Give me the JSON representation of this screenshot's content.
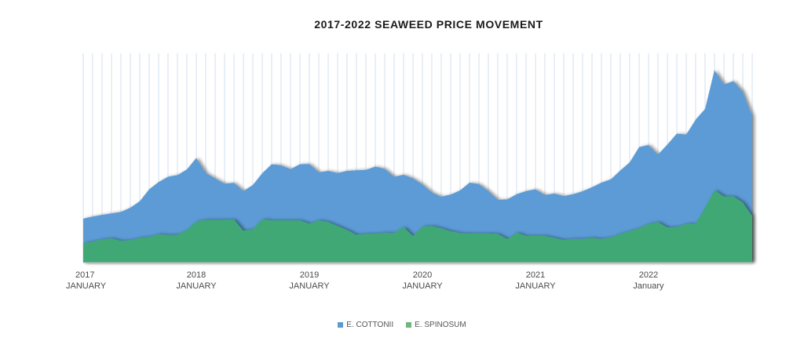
{
  "chart_data": {
    "type": "area",
    "title": "2017-2022 SEAWEED PRICE MOVEMENT",
    "xlabel": "",
    "ylabel": "",
    "grid": "vertical",
    "legend_position": "bottom",
    "x_ticks": [
      {
        "year": "2017",
        "month": "JANUARY"
      },
      {
        "year": "2018",
        "month": "JANUARY"
      },
      {
        "year": "2019",
        "month": "JANUARY"
      },
      {
        "year": "2020",
        "month": "JANUARY"
      },
      {
        "year": "2021",
        "month": "JANUARY"
      },
      {
        "year": "2022",
        "month": "January"
      }
    ],
    "series": [
      {
        "name": "E. COTTONII",
        "color": "#5b9bd5",
        "values": [
          0.21,
          0.22,
          0.228,
          0.235,
          0.242,
          0.262,
          0.293,
          0.35,
          0.385,
          0.41,
          0.418,
          0.445,
          0.5,
          0.428,
          0.402,
          0.377,
          0.381,
          0.342,
          0.371,
          0.427,
          0.47,
          0.465,
          0.446,
          0.47,
          0.471,
          0.431,
          0.438,
          0.428,
          0.438,
          0.441,
          0.443,
          0.459,
          0.448,
          0.41,
          0.42,
          0.402,
          0.373,
          0.335,
          0.315,
          0.325,
          0.345,
          0.382,
          0.375,
          0.342,
          0.3,
          0.302,
          0.327,
          0.342,
          0.35,
          0.323,
          0.33,
          0.318,
          0.327,
          0.341,
          0.36,
          0.382,
          0.398,
          0.44,
          0.479,
          0.552,
          0.562,
          0.516,
          0.564,
          0.616,
          0.612,
          0.683,
          0.734,
          0.92,
          0.851,
          0.867,
          0.816,
          0.7
        ]
      },
      {
        "name": "E. SPINOSUM",
        "color": "#3fa875",
        "values": [
          0.092,
          0.1,
          0.11,
          0.116,
          0.104,
          0.107,
          0.118,
          0.122,
          0.136,
          0.132,
          0.133,
          0.156,
          0.196,
          0.204,
          0.204,
          0.204,
          0.206,
          0.152,
          0.159,
          0.207,
          0.202,
          0.202,
          0.202,
          0.202,
          0.186,
          0.202,
          0.194,
          0.175,
          0.156,
          0.133,
          0.137,
          0.137,
          0.143,
          0.141,
          0.17,
          0.127,
          0.172,
          0.175,
          0.164,
          0.15,
          0.141,
          0.139,
          0.139,
          0.139,
          0.137,
          0.113,
          0.143,
          0.128,
          0.128,
          0.128,
          0.118,
          0.108,
          0.113,
          0.113,
          0.118,
          0.113,
          0.12,
          0.137,
          0.15,
          0.165,
          0.184,
          0.194,
          0.168,
          0.17,
          0.184,
          0.186,
          0.262,
          0.346,
          0.316,
          0.316,
          0.288,
          0.222
        ]
      }
    ]
  }
}
